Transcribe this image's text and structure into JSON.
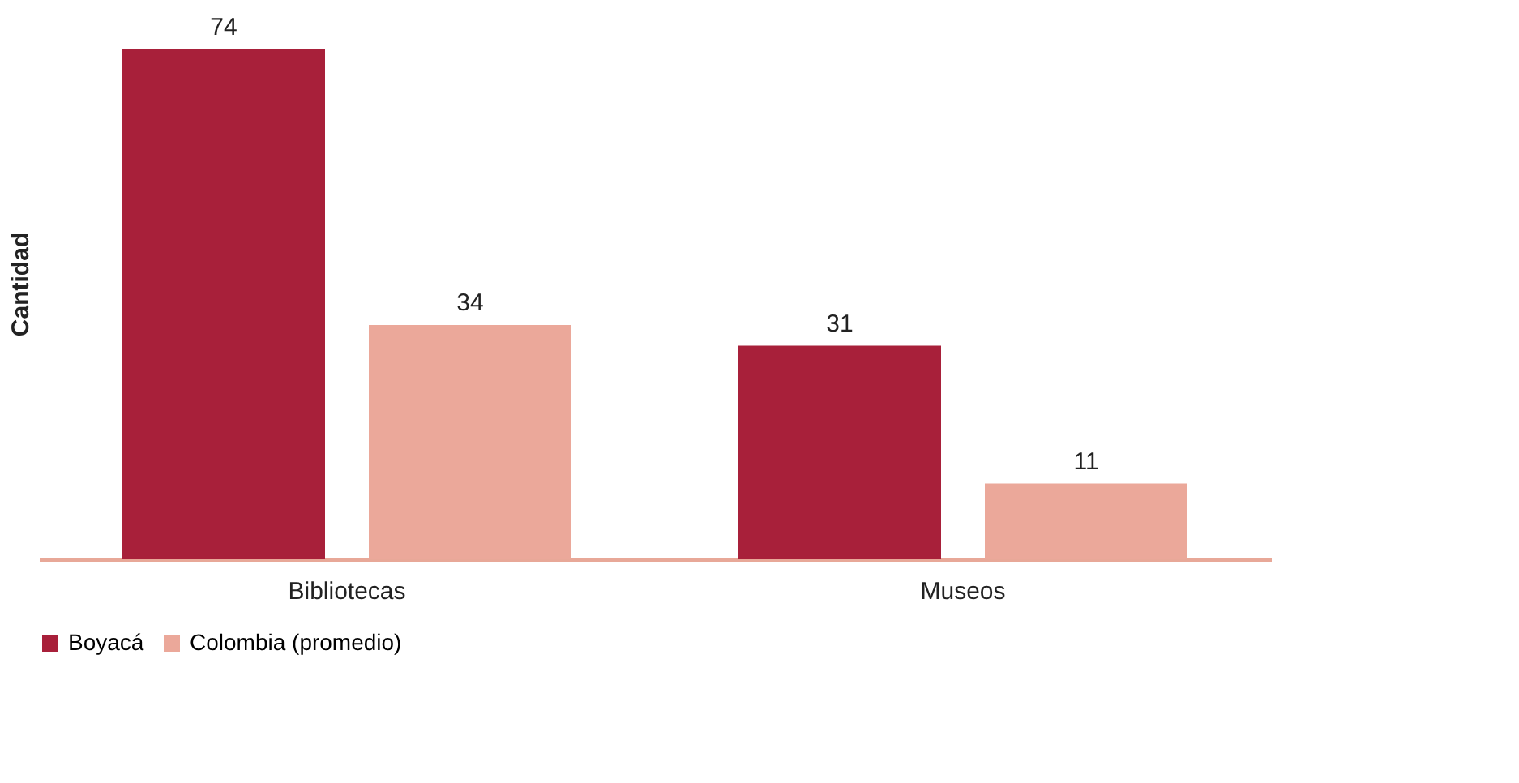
{
  "chart_data": {
    "type": "bar",
    "ylabel": "Cantidad",
    "categories": [
      "Bibliotecas",
      "Museos"
    ],
    "series": [
      {
        "name": "Boyacá",
        "color": "#a8203a",
        "values": [
          74,
          31
        ]
      },
      {
        "name": "Colombia (promedio)",
        "color": "#eba89a",
        "values": [
          34,
          11
        ]
      }
    ],
    "data_labels": true,
    "legend": "bottom",
    "grid": false
  }
}
